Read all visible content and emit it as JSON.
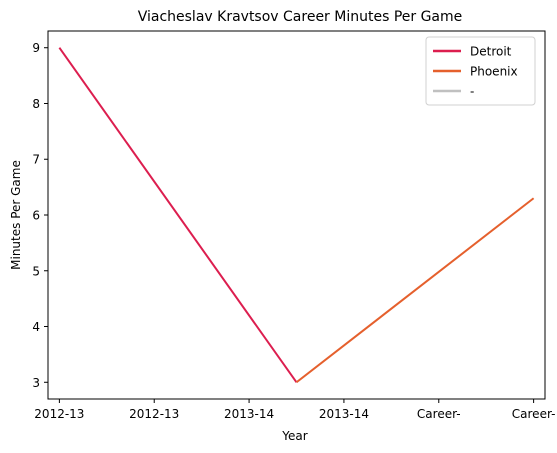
{
  "chart_data": {
    "type": "line",
    "title": "Viacheslav Kravtsov Career Minutes Per Game",
    "xlabel": "Year",
    "ylabel": "Minutes Per Game",
    "x_tick_labels": [
      "2012-13",
      "2012-13",
      "2013-14",
      "2013-14",
      "Career-",
      "Career-"
    ],
    "yticks": [
      3,
      4,
      5,
      6,
      7,
      8,
      9
    ],
    "xlim": [
      -0.12,
      5.12
    ],
    "ylim": [
      2.7,
      9.3
    ],
    "grid": false,
    "legend_position": "top-right",
    "series": [
      {
        "name": "Detroit",
        "color": "#dc1e4f",
        "points": [
          [
            0,
            9.0
          ],
          [
            2.5,
            3.0
          ]
        ]
      },
      {
        "name": "Phoenix",
        "color": "#e5602d",
        "points": [
          [
            2.5,
            3.0
          ],
          [
            5,
            6.3
          ]
        ]
      },
      {
        "name": "-",
        "color": "#c0c0c0",
        "points": []
      }
    ]
  }
}
